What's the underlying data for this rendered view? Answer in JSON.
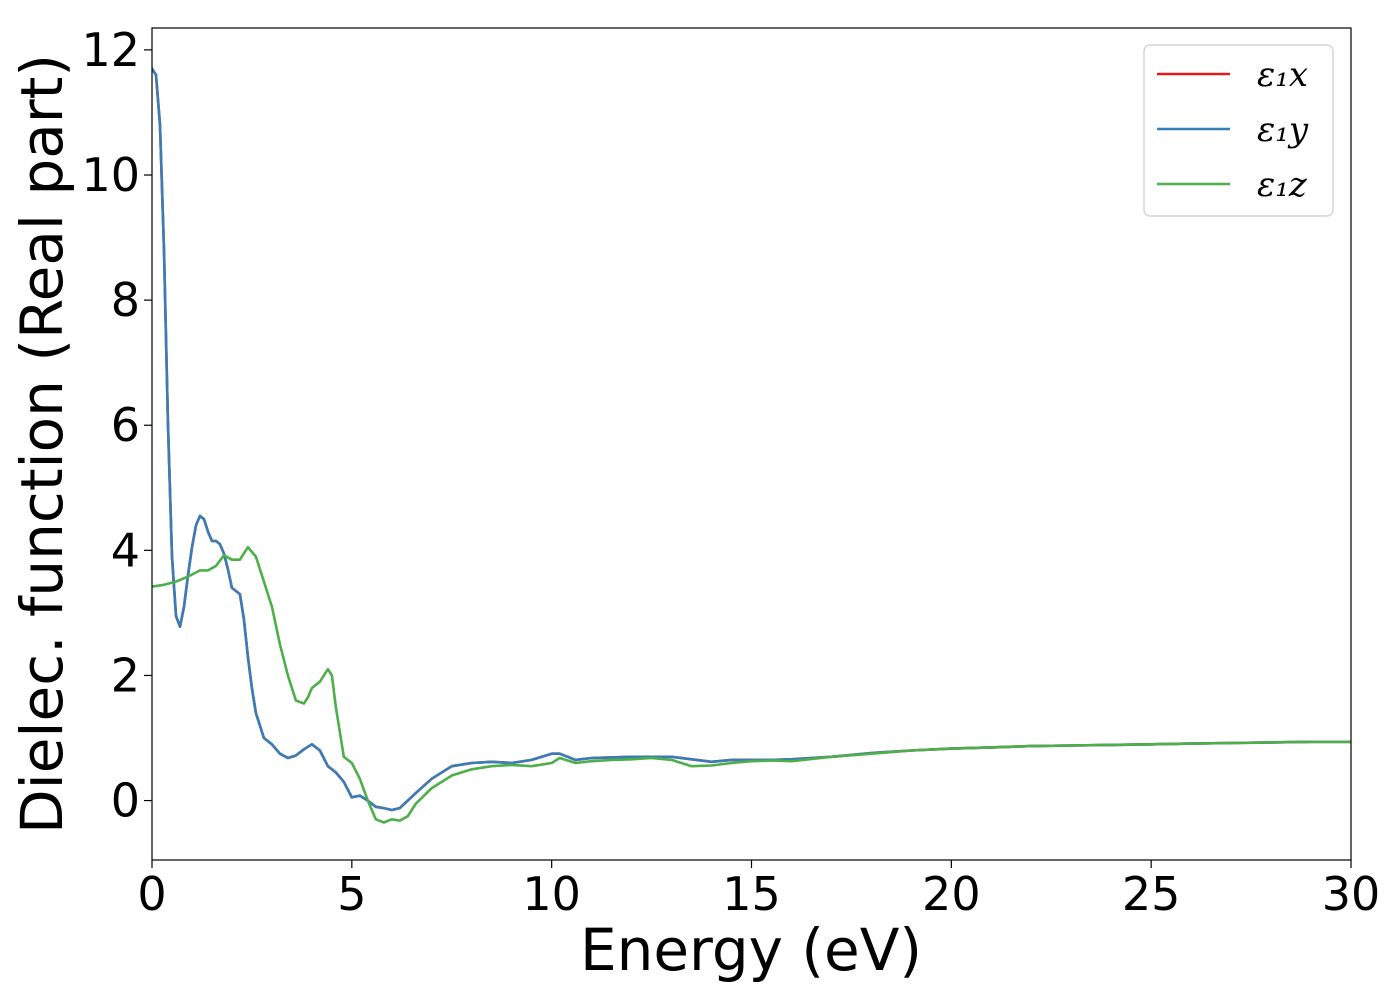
{
  "chart_data": {
    "type": "line",
    "title": "",
    "xlabel": "Energy (eV)",
    "ylabel": "Dielec. function (Real part)",
    "xlim": [
      0,
      30
    ],
    "ylim": [
      -0.95,
      12.35
    ],
    "xticks": [
      0,
      5,
      10,
      15,
      20,
      25,
      30
    ],
    "xtick_labels": [
      "0",
      "5",
      "10",
      "15",
      "20",
      "25",
      "30"
    ],
    "yticks": [
      0,
      2,
      4,
      6,
      8,
      10,
      12
    ],
    "ytick_labels": [
      "0",
      "2",
      "4",
      "6",
      "8",
      "10",
      "12"
    ],
    "grid": false,
    "legend_position": "top-right",
    "series": [
      {
        "name": "ε₁x",
        "color": "#e41a1c",
        "x": [
          0,
          0.1,
          0.2,
          0.3,
          0.4,
          0.5,
          0.6,
          0.7,
          0.8,
          0.9,
          1.0,
          1.1,
          1.2,
          1.3,
          1.4,
          1.5,
          1.6,
          1.7,
          1.8,
          1.9,
          2.0,
          2.1,
          2.2,
          2.3,
          2.4,
          2.5,
          2.6,
          2.8,
          3.0,
          3.2,
          3.4,
          3.6,
          3.8,
          4.0,
          4.2,
          4.4,
          4.6,
          4.8,
          5.0,
          5.2,
          5.4,
          5.6,
          5.8,
          6.0,
          6.2,
          6.4,
          6.6,
          7.0,
          7.5,
          8.0,
          8.5,
          9.0,
          9.5,
          10.0,
          10.2,
          10.6,
          11.0,
          11.5,
          12.0,
          12.5,
          13.0,
          13.5,
          14.0,
          14.5,
          15.0,
          15.5,
          16.0,
          17.0,
          18.0,
          19.0,
          20.0,
          21.0,
          22.0,
          23.0,
          24.0,
          25.0,
          26.0,
          27.0,
          28.0,
          29.0,
          30.0
        ],
        "y": [
          11.7,
          11.6,
          10.8,
          8.8,
          6.0,
          3.9,
          2.95,
          2.78,
          3.1,
          3.6,
          4.05,
          4.4,
          4.55,
          4.5,
          4.3,
          4.15,
          4.15,
          4.1,
          3.95,
          3.7,
          3.4,
          3.35,
          3.3,
          2.9,
          2.3,
          1.8,
          1.4,
          1.0,
          0.9,
          0.75,
          0.68,
          0.72,
          0.82,
          0.9,
          0.8,
          0.55,
          0.45,
          0.3,
          0.05,
          0.08,
          0.0,
          -0.1,
          -0.12,
          -0.15,
          -0.12,
          0.0,
          0.12,
          0.35,
          0.55,
          0.6,
          0.62,
          0.6,
          0.65,
          0.75,
          0.75,
          0.65,
          0.68,
          0.69,
          0.7,
          0.7,
          0.7,
          0.66,
          0.62,
          0.65,
          0.65,
          0.65,
          0.66,
          0.7,
          0.76,
          0.8,
          0.83,
          0.85,
          0.87,
          0.88,
          0.89,
          0.9,
          0.91,
          0.92,
          0.93,
          0.94,
          0.94
        ]
      },
      {
        "name": "ε₁y",
        "color": "#377eb8",
        "x": [
          0,
          0.1,
          0.2,
          0.3,
          0.4,
          0.5,
          0.6,
          0.7,
          0.8,
          0.9,
          1.0,
          1.1,
          1.2,
          1.3,
          1.4,
          1.5,
          1.6,
          1.7,
          1.8,
          1.9,
          2.0,
          2.1,
          2.2,
          2.3,
          2.4,
          2.5,
          2.6,
          2.8,
          3.0,
          3.2,
          3.4,
          3.6,
          3.8,
          4.0,
          4.2,
          4.4,
          4.6,
          4.8,
          5.0,
          5.2,
          5.4,
          5.6,
          5.8,
          6.0,
          6.2,
          6.4,
          6.6,
          7.0,
          7.5,
          8.0,
          8.5,
          9.0,
          9.5,
          10.0,
          10.2,
          10.6,
          11.0,
          11.5,
          12.0,
          12.5,
          13.0,
          13.5,
          14.0,
          14.5,
          15.0,
          15.5,
          16.0,
          17.0,
          18.0,
          19.0,
          20.0,
          21.0,
          22.0,
          23.0,
          24.0,
          25.0,
          26.0,
          27.0,
          28.0,
          29.0,
          30.0
        ],
        "y": [
          11.7,
          11.6,
          10.8,
          8.8,
          6.0,
          3.9,
          2.95,
          2.78,
          3.1,
          3.6,
          4.05,
          4.4,
          4.55,
          4.5,
          4.3,
          4.15,
          4.15,
          4.1,
          3.95,
          3.7,
          3.4,
          3.35,
          3.3,
          2.9,
          2.3,
          1.8,
          1.4,
          1.0,
          0.9,
          0.75,
          0.68,
          0.72,
          0.82,
          0.9,
          0.8,
          0.55,
          0.45,
          0.3,
          0.05,
          0.08,
          0.0,
          -0.1,
          -0.12,
          -0.15,
          -0.12,
          0.0,
          0.12,
          0.35,
          0.55,
          0.6,
          0.62,
          0.6,
          0.65,
          0.75,
          0.75,
          0.65,
          0.68,
          0.69,
          0.7,
          0.7,
          0.7,
          0.66,
          0.62,
          0.65,
          0.65,
          0.65,
          0.66,
          0.7,
          0.76,
          0.8,
          0.83,
          0.85,
          0.87,
          0.88,
          0.89,
          0.9,
          0.91,
          0.92,
          0.93,
          0.94,
          0.94
        ]
      },
      {
        "name": "ε₁z",
        "color": "#4daf4a",
        "x": [
          0,
          0.3,
          0.6,
          0.9,
          1.2,
          1.4,
          1.6,
          1.8,
          2.0,
          2.2,
          2.4,
          2.6,
          2.8,
          3.0,
          3.2,
          3.4,
          3.6,
          3.8,
          3.9,
          4.0,
          4.2,
          4.4,
          4.5,
          4.6,
          4.8,
          5.0,
          5.2,
          5.4,
          5.6,
          5.8,
          6.0,
          6.2,
          6.4,
          6.6,
          7.0,
          7.5,
          8.0,
          8.5,
          9.0,
          9.5,
          10.0,
          10.2,
          10.6,
          11.0,
          11.5,
          12.0,
          12.5,
          13.0,
          13.5,
          14.0,
          14.5,
          15.0,
          15.5,
          16.0,
          17.0,
          18.0,
          19.0,
          20.0,
          21.0,
          22.0,
          23.0,
          24.0,
          25.0,
          26.0,
          27.0,
          28.0,
          29.0,
          30.0
        ],
        "y": [
          3.42,
          3.45,
          3.5,
          3.58,
          3.68,
          3.68,
          3.75,
          3.92,
          3.85,
          3.85,
          4.05,
          3.9,
          3.5,
          3.1,
          2.5,
          2.0,
          1.6,
          1.55,
          1.65,
          1.8,
          1.9,
          2.1,
          2.0,
          1.5,
          0.7,
          0.6,
          0.35,
          0.0,
          -0.3,
          -0.35,
          -0.3,
          -0.32,
          -0.25,
          -0.05,
          0.2,
          0.4,
          0.5,
          0.55,
          0.57,
          0.55,
          0.6,
          0.68,
          0.6,
          0.63,
          0.65,
          0.66,
          0.68,
          0.65,
          0.55,
          0.56,
          0.6,
          0.63,
          0.64,
          0.63,
          0.7,
          0.75,
          0.8,
          0.83,
          0.85,
          0.87,
          0.88,
          0.89,
          0.9,
          0.91,
          0.92,
          0.93,
          0.94,
          0.94
        ]
      }
    ]
  }
}
